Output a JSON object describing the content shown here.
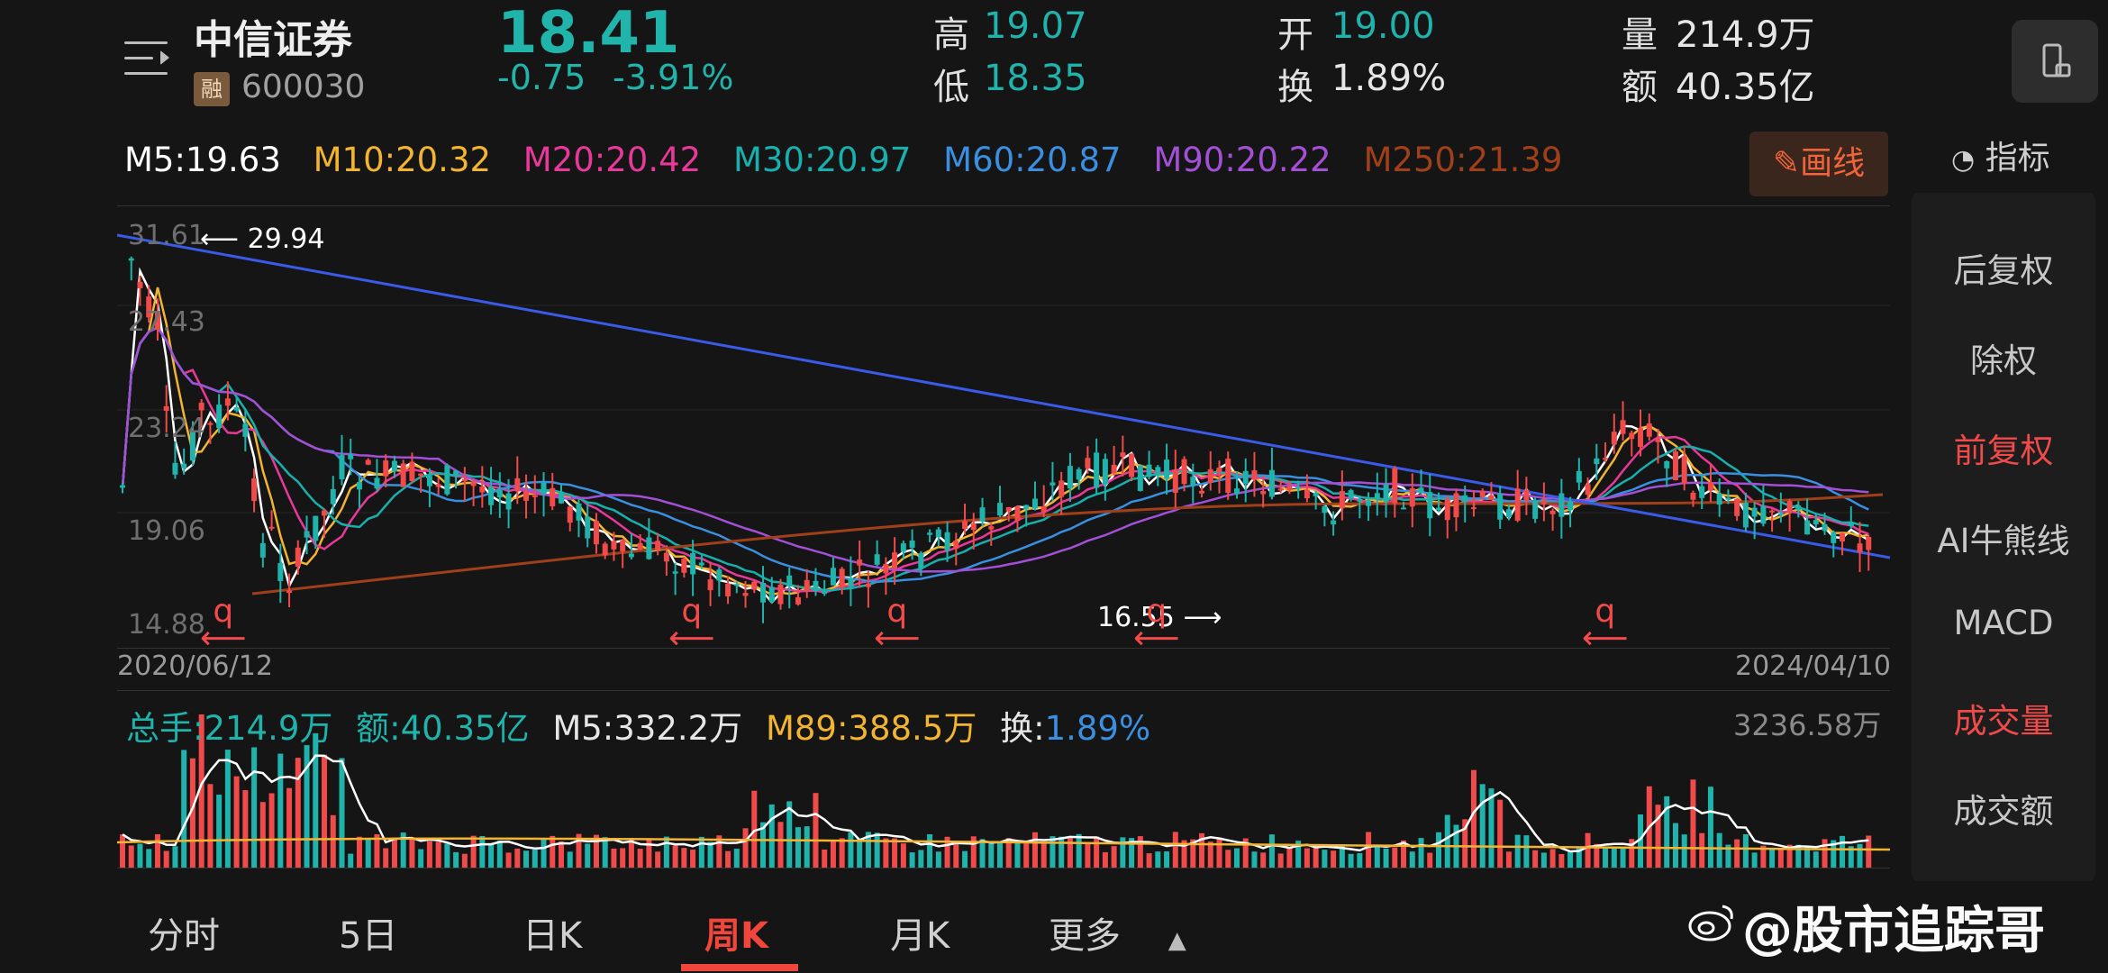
{
  "header": {
    "stock_name": "中信证券",
    "rong_badge": "融",
    "stock_code": "600030",
    "price": "18.41",
    "change": "-0.75",
    "change_pct": "-3.91%",
    "high_label": "高",
    "high_value": "19.07",
    "low_label": "低",
    "low_value": "18.35",
    "open_label": "开",
    "open_value": "19.00",
    "turnover_label": "换",
    "turnover_value": "1.89%",
    "volume_label": "量",
    "volume_value": "214.9万",
    "amount_label": "额",
    "amount_value": "40.35亿"
  },
  "ma": {
    "m5": "M5:19.63",
    "m10": "M10:20.32",
    "m20": "M20:20.42",
    "m30": "M30:20.97",
    "m60": "M60:20.87",
    "m90": "M90:20.22",
    "m250": "M250:21.39"
  },
  "toolbar": {
    "draw_label": "画线",
    "indicator_label": "指标"
  },
  "side_menu": [
    "后复权",
    "除权",
    "前复权",
    "AI牛熊线",
    "MACD",
    "成交量",
    "成交额"
  ],
  "chart": {
    "y_labels": [
      "31.61",
      "27.43",
      "23.24",
      "19.06",
      "14.88"
    ],
    "max_note": "29.94",
    "min_note": "16.55",
    "date_start": "2020/06/12",
    "date_end": "2024/04/10",
    "q_marker": "q"
  },
  "volume": {
    "total_label": "总手:214.9万",
    "amount_label": "额:40.35亿",
    "m5_label": "M5:332.2万",
    "m89_label": "M89:388.5万",
    "turnover_prefix": "换:",
    "turnover_value": "1.89%",
    "max_label": "3236.58万"
  },
  "tabs": [
    "分时",
    "5日",
    "日K",
    "周K",
    "月K",
    "更多"
  ],
  "watermark": "@股市追踪哥",
  "colors": {
    "up": "#f04a4a",
    "down": "#1fb3ac",
    "m5": "#ffffff",
    "m10": "#f2b431",
    "m20": "#e8399a",
    "m30": "#18b0ad",
    "m60": "#3a8fe0",
    "m90": "#a34fd6",
    "m250": "#a0401a",
    "trendline": "#3a5ae8"
  }
}
